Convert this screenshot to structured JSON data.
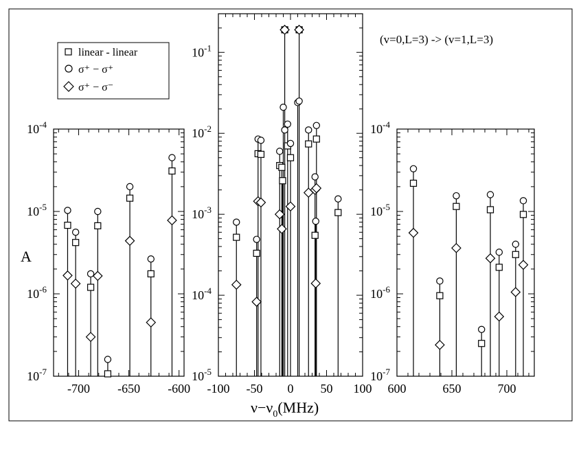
{
  "chart_data": {
    "type": "scatter",
    "annotation": "(v=0,L=3) -> (v=1,L=3)",
    "ylabel": "A",
    "xlabel": "ν−ν",
    "xlabel_sub": "0",
    "xlabel_unit": "(MHz)",
    "legend": {
      "placement": "top-left",
      "entries": [
        {
          "label": "linear - linear",
          "marker": "square"
        },
        {
          "label": "σ⁺ − σ⁺",
          "marker": "circle"
        },
        {
          "label": "σ⁺ − σ⁻",
          "marker": "diamond"
        }
      ]
    },
    "panels": [
      {
        "id": "left",
        "xlim": [
          -725,
          -595
        ],
        "ylim": [
          1e-07,
          0.0001
        ],
        "yscale": "log",
        "xticks": [
          -700,
          -650,
          -600
        ],
        "xticklabels": [
          "-700",
          "-650",
          "-600"
        ],
        "ytick_labels": [
          {
            "base": "10",
            "exp": "-4"
          },
          {
            "base": "10",
            "exp": "-5"
          },
          {
            "base": "10",
            "exp": "-6"
          },
          {
            "base": "10",
            "exp": "-7"
          }
        ],
        "series": [
          {
            "label": "linear - linear",
            "marker": "square",
            "x": [
              -711,
              -703,
              -688,
              -681,
              -671,
              -649,
              -628,
              -607
            ],
            "y": [
              6.8e-06,
              4.2e-06,
              1.2e-06,
              6.7e-06,
              1.07e-07,
              1.45e-05,
              1.75e-06,
              3.1e-05
            ]
          },
          {
            "label": "σ⁺ − σ⁺",
            "marker": "circle",
            "x": [
              -711,
              -703,
              -688,
              -681,
              -671,
              -649,
              -628,
              -607
            ],
            "y": [
              1.03e-05,
              5.6e-06,
              1.75e-06,
              1e-05,
              1.6e-07,
              2e-05,
              2.65e-06,
              4.5e-05
            ]
          },
          {
            "label": "σ⁺ − σ⁻",
            "marker": "diamond",
            "x": [
              -711,
              -703,
              -688,
              -681,
              -649,
              -628,
              -607
            ],
            "y": [
              1.67e-06,
              1.33e-06,
              3e-07,
              1.65e-06,
              4.4e-06,
              4.5e-07,
              7.8e-06
            ]
          }
        ]
      },
      {
        "id": "middle",
        "xlim": [
          -100,
          100
        ],
        "ylim": [
          1e-05,
          0.3
        ],
        "yscale": "log",
        "xticks": [
          -100,
          -50,
          0,
          50,
          100
        ],
        "xticklabels": [
          "-100",
          "-50",
          "0",
          "50",
          "100"
        ],
        "ytick_labels": [
          {
            "base": "10",
            "exp": "-1"
          },
          {
            "base": "10",
            "exp": "-2"
          },
          {
            "base": "10",
            "exp": "-3"
          },
          {
            "base": "10",
            "exp": "-4"
          },
          {
            "base": "10",
            "exp": "-5"
          }
        ],
        "series": [
          {
            "label": "linear - linear",
            "marker": "square",
            "x": [
              -75,
              -47,
              -45,
              -41,
              -15,
              -12,
              -11,
              -4,
              0,
              25,
              34,
              36,
              66,
              -8,
              12
            ],
            "y": [
              0.00052,
              0.00033,
              0.0056,
              0.0055,
              0.004,
              0.0038,
              0.0026,
              0.007,
              0.005,
              0.0074,
              0.00055,
              0.0085,
              0.00105,
              0.19,
              0.19
            ]
          },
          {
            "label": "σ⁺ − σ⁺",
            "marker": "circle",
            "x": [
              -75,
              -47,
              -45,
              -41,
              -15,
              -10,
              -8,
              -4,
              0,
              10,
              12,
              25,
              34,
              35,
              36,
              66,
              -8,
              12
            ],
            "y": [
              0.0008,
              0.00049,
              0.0085,
              0.0082,
              0.006,
              0.021,
              0.011,
              0.013,
              0.0075,
              0.024,
              0.025,
              0.011,
              0.0029,
              0.00082,
              0.0125,
              0.00155,
              0.19,
              0.19
            ]
          },
          {
            "label": "σ⁺ − σ⁻",
            "marker": "diamond",
            "x": [
              -75,
              -47,
              -45,
              -41,
              -15,
              -12,
              0,
              25,
              34,
              35,
              36,
              -8,
              12
            ],
            "y": [
              0.000135,
              8.3e-05,
              0.00145,
              0.0014,
              0.001,
              0.00066,
              0.00125,
              0.00185,
              0.002,
              0.00014,
              0.0021,
              0.19,
              0.19
            ]
          }
        ]
      },
      {
        "id": "right",
        "xlim": [
          600,
          725
        ],
        "ylim": [
          1e-07,
          0.0001
        ],
        "yscale": "log",
        "xticks": [
          600,
          650,
          700
        ],
        "xticklabels": [
          "600",
          "650",
          "700"
        ],
        "ytick_labels": [
          {
            "base": "10",
            "exp": "-4"
          },
          {
            "base": "10",
            "exp": "-5"
          },
          {
            "base": "10",
            "exp": "-6"
          },
          {
            "base": "10",
            "exp": "-7"
          }
        ],
        "series": [
          {
            "label": "linear - linear",
            "marker": "square",
            "x": [
              615,
              639,
              654,
              677,
              685,
              693,
              708,
              715
            ],
            "y": [
              2.2e-05,
              9.5e-07,
              1.15e-05,
              2.5e-07,
              1.05e-05,
              2.1e-06,
              3e-06,
              9.2e-06
            ]
          },
          {
            "label": "σ⁺ − σ⁺",
            "marker": "circle",
            "x": [
              615,
              639,
              654,
              677,
              685,
              693,
              708,
              715
            ],
            "y": [
              3.3e-05,
              1.43e-06,
              1.55e-05,
              3.7e-07,
              1.6e-05,
              3.2e-06,
              4e-06,
              1.35e-05
            ]
          },
          {
            "label": "σ⁺ − σ⁻",
            "marker": "diamond",
            "x": [
              615,
              639,
              654,
              685,
              693,
              708,
              715
            ],
            "y": [
              5.5e-06,
              2.4e-07,
              3.6e-06,
              2.7e-06,
              5.3e-07,
              1.05e-06,
              2.25e-06
            ]
          }
        ]
      }
    ]
  }
}
